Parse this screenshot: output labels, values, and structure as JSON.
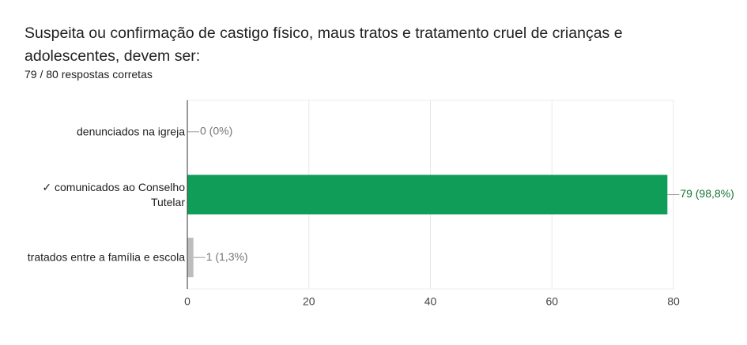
{
  "chart_data": {
    "type": "bar",
    "orientation": "horizontal",
    "title": "Suspeita ou confirmação de castigo físico, maus tratos e tratamento cruel de crianças e adolescentes, devem ser:",
    "subtitle": "79 / 80 respostas corretas",
    "categories": [
      "denunciados na igreja",
      "✓ comunicados ao Conselho Tutelar",
      "tratados entre a família e escola"
    ],
    "values": [
      0,
      79,
      1
    ],
    "value_labels": [
      "0 (0%)",
      "79 (98,8%)",
      "1 (1,3%)"
    ],
    "colors": [
      "#bdbdbd",
      "#0f9d58",
      "#bdbdbd"
    ],
    "label_colors": [
      "#757575",
      "#137333",
      "#757575"
    ],
    "xlim": [
      0,
      80
    ],
    "xticks": [
      0,
      20,
      40,
      60,
      80
    ],
    "grid": true
  }
}
